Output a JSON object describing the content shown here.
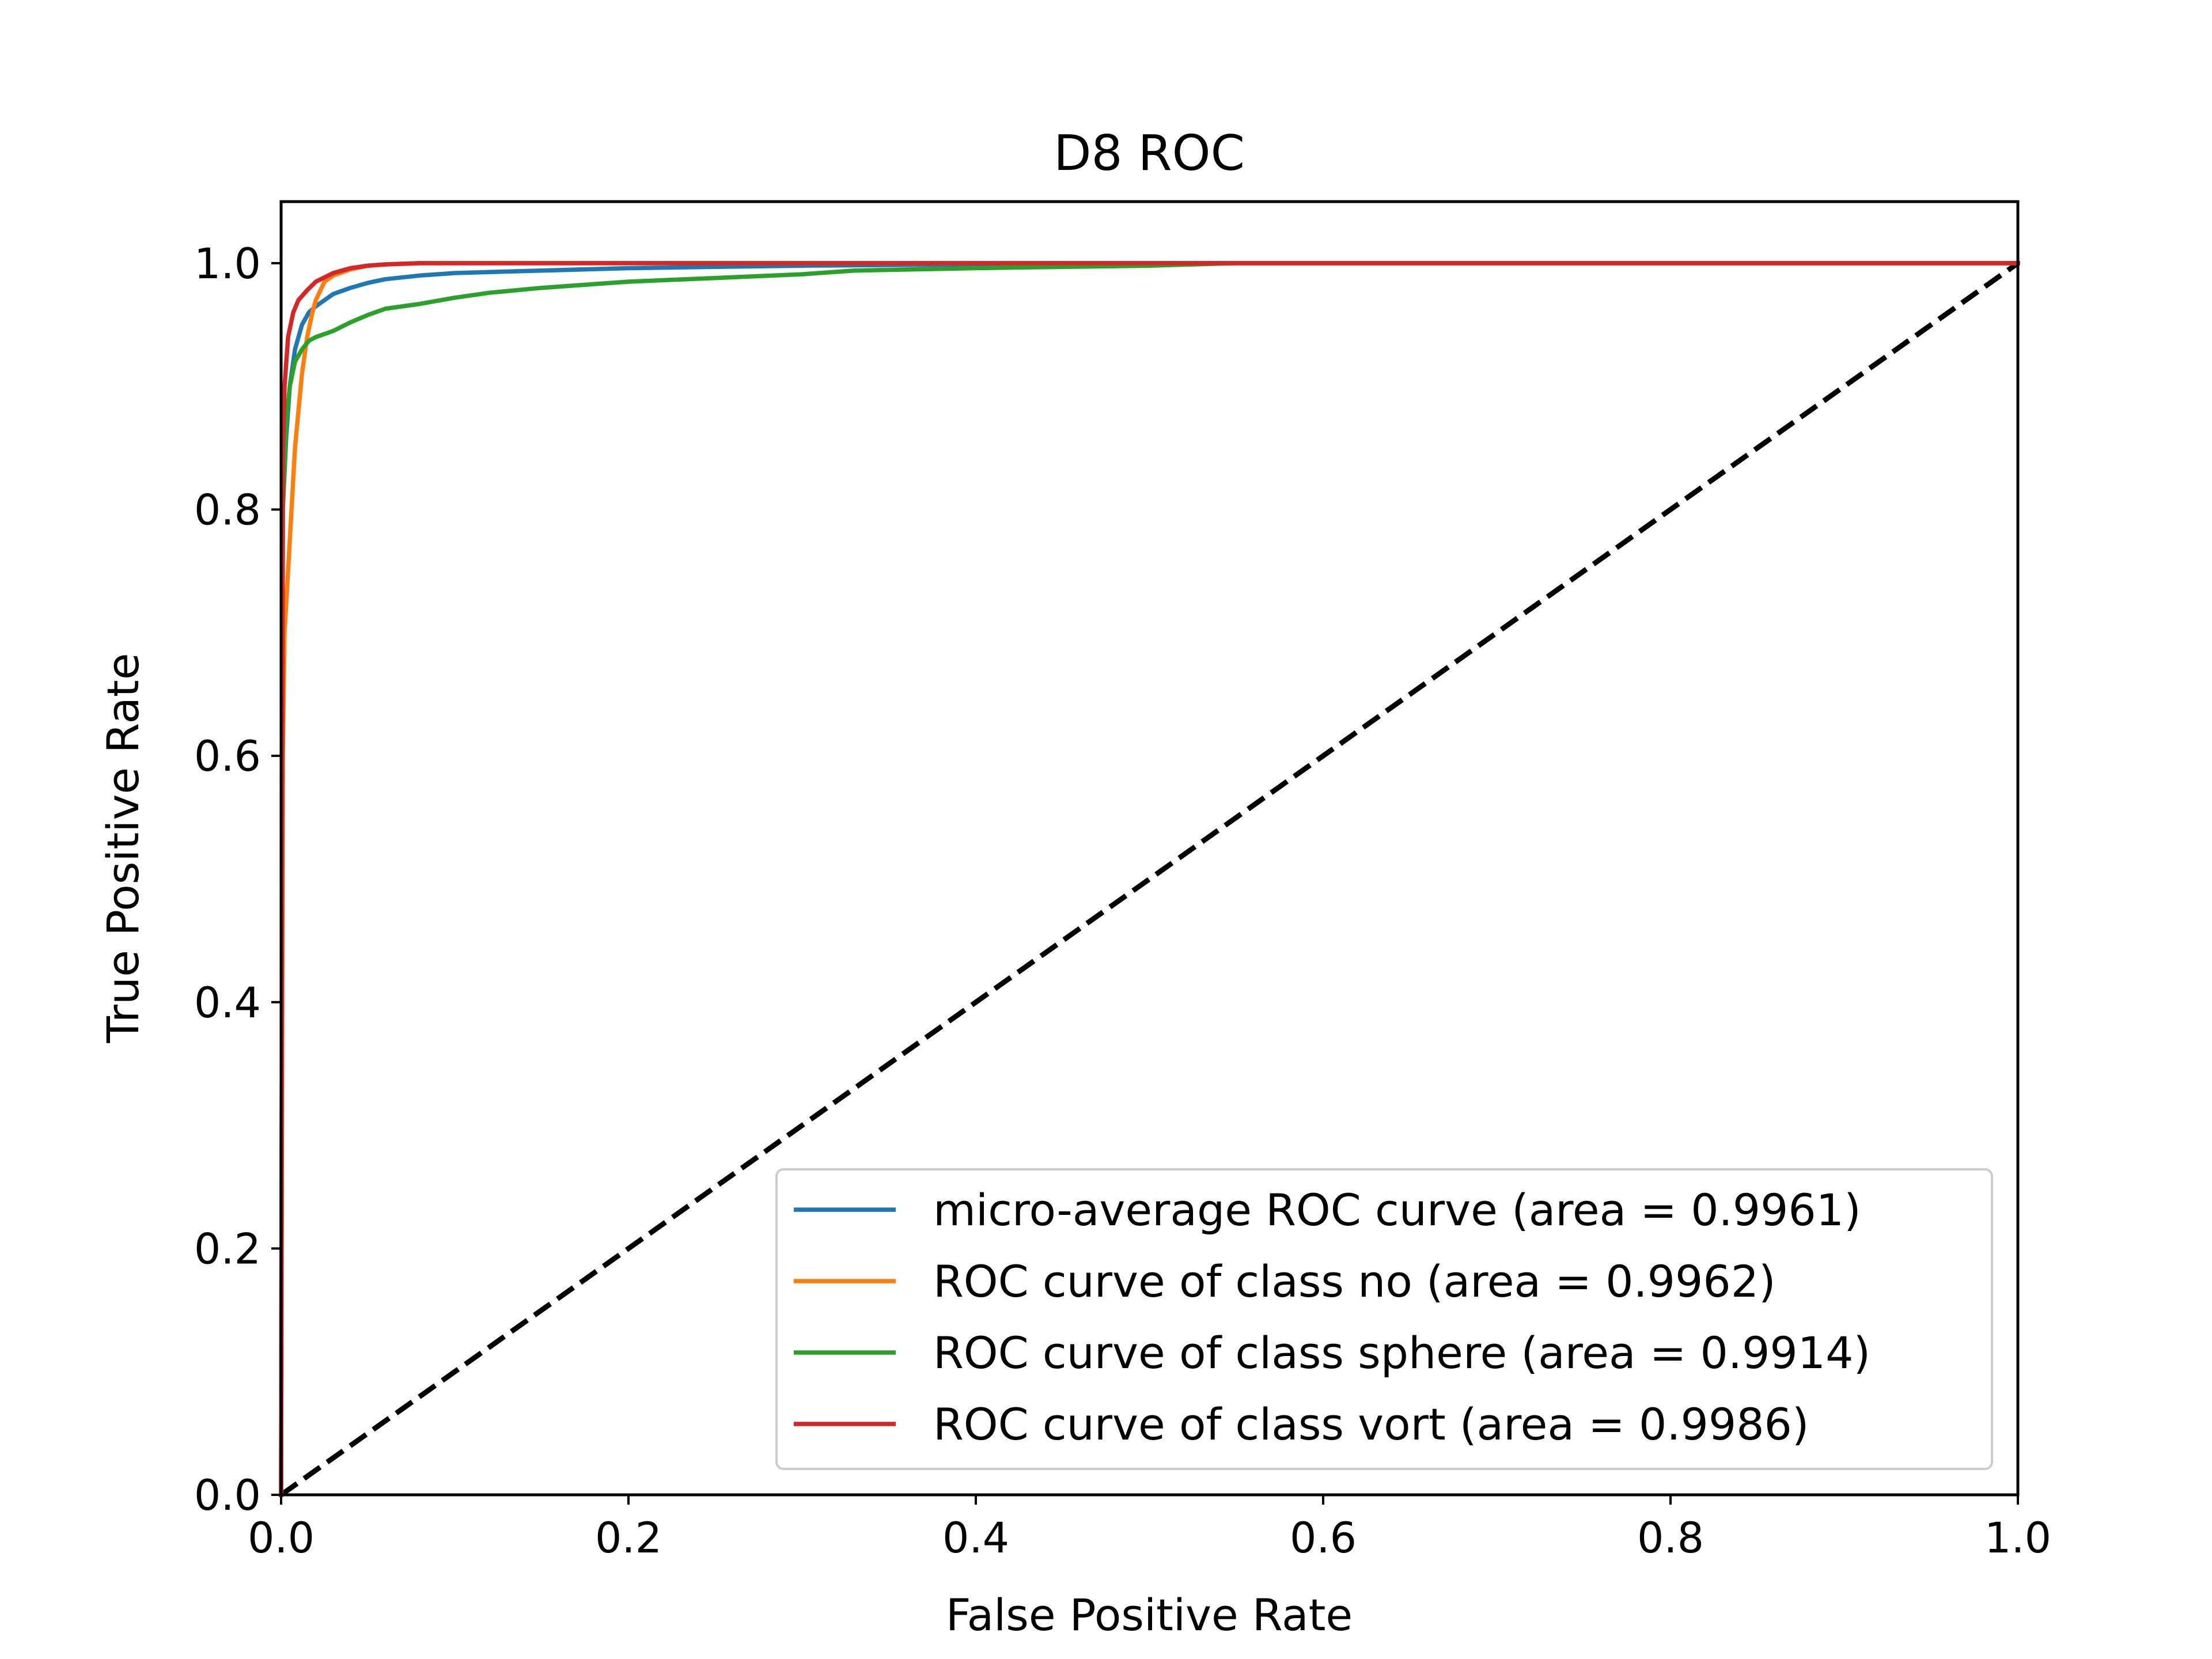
{
  "chart_data": {
    "type": "line",
    "title": "D8 ROC",
    "xlabel": "False Positive Rate",
    "ylabel": "True Positive Rate",
    "xlim": [
      0.0,
      1.0
    ],
    "ylim": [
      0.0,
      1.05
    ],
    "xticks": [
      0.0,
      0.2,
      0.4,
      0.6,
      0.8,
      1.0
    ],
    "xtick_labels": [
      "0.0",
      "0.2",
      "0.4",
      "0.6",
      "0.8",
      "1.0"
    ],
    "yticks": [
      0.0,
      0.2,
      0.4,
      0.6,
      0.8,
      1.0
    ],
    "ytick_labels": [
      "0.0",
      "0.2",
      "0.4",
      "0.6",
      "0.8",
      "1.0"
    ],
    "grid": false,
    "legend_position": "lower-right",
    "series": [
      {
        "name": "micro-average ROC curve (area = 0.9961)",
        "color": "#1f77b4",
        "x": [
          0.0,
          0.001,
          0.003,
          0.005,
          0.008,
          0.012,
          0.016,
          0.02,
          0.025,
          0.03,
          0.04,
          0.05,
          0.06,
          0.08,
          0.1,
          0.15,
          0.2,
          0.25,
          0.3,
          0.4,
          0.5,
          1.0
        ],
        "y": [
          0.0,
          0.8,
          0.86,
          0.9,
          0.93,
          0.95,
          0.96,
          0.965,
          0.97,
          0.975,
          0.98,
          0.984,
          0.987,
          0.99,
          0.992,
          0.994,
          0.996,
          0.997,
          0.998,
          0.999,
          1.0,
          1.0
        ]
      },
      {
        "name": "ROC curve of class no (area = 0.9962)",
        "color": "#ff7f0e",
        "x": [
          0.0,
          0.001,
          0.002,
          0.004,
          0.006,
          0.008,
          0.01,
          0.012,
          0.015,
          0.018,
          0.02,
          0.025,
          0.03,
          0.04,
          0.05,
          0.06,
          0.08,
          0.1,
          1.0
        ],
        "y": [
          0.0,
          0.6,
          0.7,
          0.75,
          0.8,
          0.85,
          0.88,
          0.91,
          0.94,
          0.96,
          0.97,
          0.985,
          0.99,
          0.995,
          0.998,
          0.999,
          1.0,
          1.0,
          1.0
        ]
      },
      {
        "name": "ROC curve of class sphere (area = 0.9914)",
        "color": "#2ca02c",
        "x": [
          0.0,
          0.001,
          0.003,
          0.005,
          0.008,
          0.012,
          0.016,
          0.02,
          0.03,
          0.04,
          0.05,
          0.06,
          0.08,
          0.1,
          0.12,
          0.15,
          0.18,
          0.2,
          0.25,
          0.3,
          0.33,
          0.4,
          0.5,
          0.55,
          1.0
        ],
        "y": [
          0.0,
          0.8,
          0.87,
          0.9,
          0.92,
          0.93,
          0.937,
          0.94,
          0.945,
          0.952,
          0.958,
          0.963,
          0.967,
          0.972,
          0.976,
          0.98,
          0.983,
          0.985,
          0.988,
          0.991,
          0.994,
          0.996,
          0.998,
          1.0,
          1.0
        ]
      },
      {
        "name": "ROC curve of class vort (area = 0.9986)",
        "color": "#d62728",
        "x": [
          0.0,
          0.001,
          0.002,
          0.004,
          0.007,
          0.01,
          0.015,
          0.02,
          0.03,
          0.04,
          0.05,
          0.06,
          0.08,
          0.1,
          1.0
        ],
        "y": [
          0.0,
          0.85,
          0.9,
          0.94,
          0.96,
          0.97,
          0.978,
          0.985,
          0.992,
          0.996,
          0.998,
          0.999,
          1.0,
          1.0,
          1.0
        ]
      }
    ],
    "reference_line": {
      "x": [
        0.0,
        1.0
      ],
      "y": [
        0.0,
        1.0
      ],
      "color": "#000000",
      "style": "dashed"
    }
  }
}
